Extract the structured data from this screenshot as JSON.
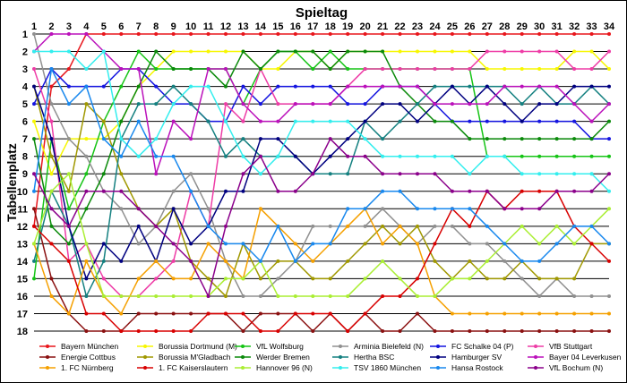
{
  "chart_data": {
    "type": "line",
    "title": "Spieltag",
    "xlabel": "Spieltag",
    "ylabel": "Tabellenplatz",
    "x": [
      1,
      2,
      3,
      4,
      5,
      6,
      7,
      8,
      9,
      10,
      11,
      12,
      13,
      14,
      15,
      16,
      17,
      18,
      19,
      20,
      21,
      22,
      23,
      24,
      25,
      26,
      27,
      28,
      29,
      30,
      31,
      32,
      33,
      34
    ],
    "xlim": [
      1,
      34
    ],
    "ylim": [
      1,
      18
    ],
    "y_inverted": true,
    "grid": true,
    "legend_position": "bottom",
    "series": [
      {
        "name": "Bayern München",
        "color": "#e8161c",
        "values": [
          12,
          4,
          3,
          1,
          1,
          1,
          1,
          1,
          1,
          1,
          1,
          1,
          1,
          1,
          1,
          1,
          1,
          1,
          1,
          1,
          1,
          1,
          1,
          1,
          1,
          1,
          1,
          1,
          1,
          1,
          1,
          1,
          1,
          1
        ]
      },
      {
        "name": "Borussia Dortmund (M)",
        "color": "#f7f700",
        "values": [
          6,
          9,
          7,
          7,
          7,
          6,
          4,
          3,
          2,
          2,
          2,
          2,
          2,
          3,
          3,
          2,
          2,
          3,
          2,
          2,
          2,
          2,
          2,
          2,
          2,
          2,
          3,
          3,
          3,
          3,
          3,
          2,
          2,
          3
        ]
      },
      {
        "name": "VfL Wolfsburg",
        "color": "#16c416",
        "values": [
          15,
          7,
          11,
          9,
          6,
          4,
          2,
          3,
          3,
          3,
          3,
          3,
          5,
          3,
          2,
          2,
          3,
          2,
          3,
          3,
          3,
          3,
          3,
          3,
          3,
          3,
          8,
          8,
          8,
          8,
          8,
          8,
          8,
          8
        ]
      },
      {
        "name": "Arminia Bielefeld (N)",
        "color": "#909090",
        "values": [
          1,
          5,
          7,
          8,
          10,
          11,
          13,
          12,
          10,
          9,
          11,
          14,
          16,
          16,
          15,
          14,
          12,
          12,
          12,
          12,
          11,
          12,
          13,
          12,
          12,
          13,
          13,
          14,
          15,
          16,
          15,
          16,
          16,
          16
        ]
      },
      {
        "name": "FC Schalke 04 (P)",
        "color": "#1414e0",
        "values": [
          5,
          3,
          4,
          4,
          4,
          3,
          3,
          4,
          5,
          5,
          6,
          6,
          4,
          5,
          4,
          4,
          4,
          4,
          5,
          5,
          4,
          4,
          4,
          5,
          6,
          6,
          6,
          6,
          6,
          6,
          6,
          6,
          7,
          7
        ]
      },
      {
        "name": "VfB Stuttgart",
        "color": "#ee3ca6",
        "values": [
          3,
          6,
          14,
          13,
          15,
          16,
          16,
          15,
          14,
          10,
          12,
          5,
          6,
          3,
          5,
          5,
          5,
          5,
          4,
          3,
          3,
          3,
          3,
          3,
          3,
          3,
          2,
          2,
          2,
          2,
          2,
          3,
          3,
          2
        ]
      },
      {
        "name": "Energie Cottbus",
        "color": "#8a1010",
        "values": [
          11,
          15,
          17,
          18,
          18,
          18,
          17,
          17,
          17,
          17,
          17,
          17,
          18,
          17,
          17,
          17,
          18,
          17,
          18,
          17,
          18,
          18,
          17,
          18,
          18,
          18,
          18,
          18,
          18,
          18,
          18,
          18,
          18,
          18
        ]
      },
      {
        "name": "Borussia M'Gladbach",
        "color": "#a09800",
        "values": [
          4,
          8,
          10,
          5,
          6,
          9,
          11,
          12,
          11,
          14,
          15,
          16,
          13,
          15,
          14,
          14,
          15,
          15,
          14,
          13,
          12,
          13,
          12,
          14,
          15,
          14,
          15,
          15,
          14,
          15,
          15,
          15,
          13,
          13
        ]
      },
      {
        "name": "Werder Bremen",
        "color": "#0a8a0a",
        "values": [
          7,
          12,
          13,
          11,
          9,
          6,
          4,
          2,
          3,
          3,
          3,
          4,
          2,
          3,
          2,
          2,
          2,
          3,
          2,
          2,
          2,
          4,
          5,
          6,
          6,
          7,
          7,
          7,
          7,
          7,
          7,
          7,
          7,
          6
        ]
      },
      {
        "name": "Hertha BSC",
        "color": "#148080",
        "values": [
          14,
          10,
          12,
          16,
          14,
          7,
          5,
          5,
          4,
          5,
          6,
          8,
          7,
          8,
          8,
          8,
          9,
          9,
          9,
          6,
          7,
          6,
          5,
          4,
          4,
          4,
          4,
          4,
          5,
          4,
          5,
          5,
          4,
          5
        ]
      },
      {
        "name": "Hamburger SV",
        "color": "#000080",
        "values": [
          4,
          7,
          12,
          15,
          13,
          14,
          12,
          14,
          11,
          13,
          12,
          10,
          10,
          7,
          7,
          8,
          9,
          8,
          7,
          6,
          5,
          5,
          6,
          5,
          4,
          5,
          4,
          5,
          6,
          5,
          5,
          4,
          4,
          4
        ]
      },
      {
        "name": "Bayer 04 Leverkusen",
        "color": "#bb11bb",
        "values": [
          2,
          1,
          1,
          1,
          2,
          3,
          3,
          9,
          6,
          7,
          3,
          3,
          5,
          6,
          6,
          5,
          5,
          5,
          4,
          4,
          4,
          4,
          4,
          5,
          5,
          5,
          5,
          4,
          4,
          4,
          4,
          5,
          6,
          5
        ]
      },
      {
        "name": "1. FC Nürnberg",
        "color": "#f5a000",
        "values": [
          13,
          16,
          17,
          14,
          16,
          17,
          15,
          14,
          15,
          15,
          13,
          14,
          15,
          11,
          12,
          13,
          14,
          13,
          12,
          11,
          13,
          12,
          13,
          16,
          17,
          17,
          17,
          17,
          17,
          17,
          17,
          17,
          17,
          17
        ]
      },
      {
        "name": "1. FC Kaiserslautern",
        "color": "#d80000",
        "values": [
          12,
          13,
          14,
          17,
          17,
          18,
          18,
          18,
          18,
          18,
          17,
          17,
          17,
          18,
          18,
          17,
          17,
          17,
          18,
          17,
          16,
          16,
          15,
          13,
          11,
          12,
          10,
          11,
          10,
          10,
          10,
          12,
          13,
          14
        ]
      },
      {
        "name": "Hannover 96 (N)",
        "color": "#aaee33",
        "values": [
          13,
          10,
          9,
          13,
          16,
          16,
          16,
          16,
          16,
          16,
          16,
          15,
          15,
          14,
          16,
          16,
          16,
          16,
          16,
          15,
          14,
          15,
          16,
          16,
          15,
          15,
          14,
          13,
          12,
          13,
          12,
          13,
          12,
          11
        ]
      },
      {
        "name": "TSV 1860 München",
        "color": "#33eeee",
        "values": [
          2,
          2,
          2,
          3,
          2,
          7,
          8,
          7,
          5,
          4,
          4,
          6,
          8,
          9,
          8,
          6,
          6,
          6,
          6,
          7,
          8,
          8,
          8,
          8,
          8,
          9,
          8,
          8,
          9,
          9,
          9,
          9,
          9,
          10
        ]
      },
      {
        "name": "Hansa Rostock",
        "color": "#1888ee",
        "values": [
          10,
          3,
          5,
          4,
          7,
          8,
          6,
          8,
          8,
          10,
          12,
          13,
          13,
          14,
          12,
          14,
          13,
          13,
          11,
          11,
          10,
          10,
          11,
          11,
          11,
          11,
          12,
          13,
          14,
          14,
          13,
          12,
          12,
          13
        ]
      },
      {
        "name": "VfL Bochum (N)",
        "color": "#8b008b",
        "values": [
          9,
          11,
          12,
          10,
          10,
          10,
          11,
          12,
          13,
          14,
          16,
          12,
          9,
          8,
          10,
          10,
          9,
          7,
          8,
          8,
          9,
          9,
          9,
          9,
          10,
          10,
          10,
          11,
          11,
          11,
          10,
          10,
          10,
          9
        ]
      }
    ]
  }
}
